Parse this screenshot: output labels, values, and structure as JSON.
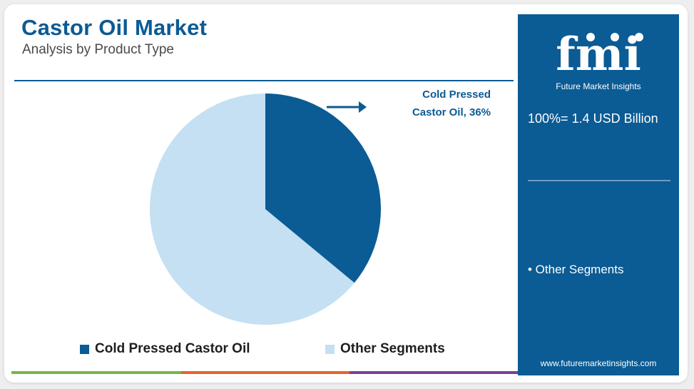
{
  "header": {
    "title": "Castor Oil Market",
    "subtitle": "Analysis by Product Type"
  },
  "callout": {
    "line1": "Cold Pressed",
    "line2": "Castor Oil, 36%"
  },
  "chart_data": {
    "type": "pie",
    "categories": [
      "Cold Pressed Castor Oil",
      "Other Segments"
    ],
    "values": [
      36,
      64
    ],
    "colors": [
      "#0b5b94",
      "#c5e0f2"
    ],
    "legend": "bottom"
  },
  "sidebar": {
    "logo_text": "fmi",
    "logo_subtitle": "Future Market Insights",
    "total": "100%= 1.4 USD Billion",
    "segments": [
      "• Other Segments"
    ],
    "website": "www.futuremarketinsights.com"
  },
  "accent_bar_colors": [
    "#7ab648",
    "#e8622a",
    "#7b3f98"
  ]
}
